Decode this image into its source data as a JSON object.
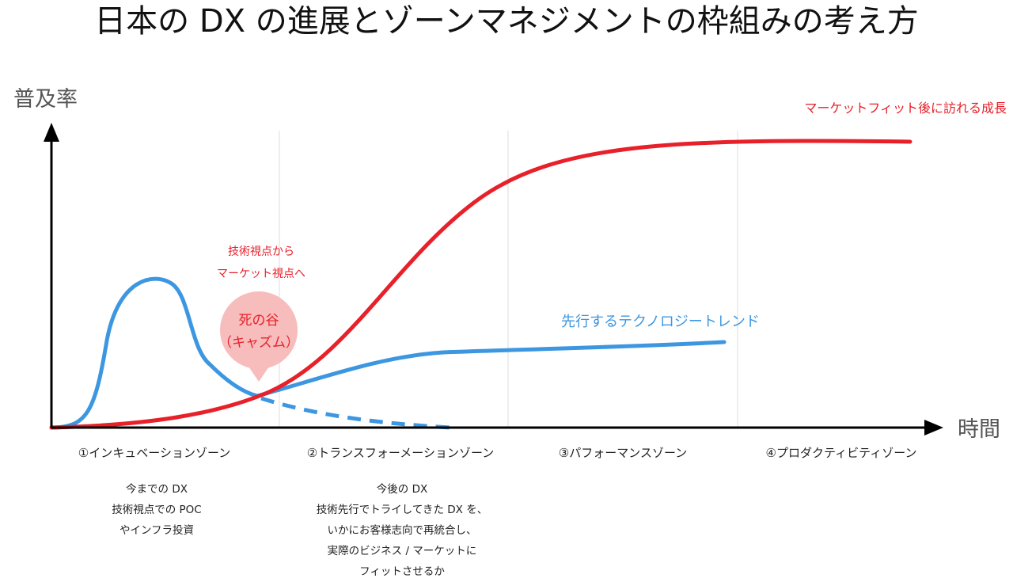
{
  "title": "日本の DX の進展とゾーンマネジメントの枠組みの考え方",
  "axes": {
    "y_label": "普及率",
    "x_label": "時間"
  },
  "zones": [
    {
      "label": "①インキュベーションゾーン"
    },
    {
      "label": "②トランスフォーメーションゾーン"
    },
    {
      "label": "③パフォーマンスゾーン"
    },
    {
      "label": "④プロダクティビティゾーン"
    }
  ],
  "descriptions": {
    "zone1": [
      "今までの DX",
      "技術視点での POC",
      "やインフラ投資"
    ],
    "zone2": [
      "今後の DX",
      "技術先行でトライしてきた DX を、",
      "いかにお客様志向で再統合し、",
      "実際のビジネス / マーケットに",
      "フィットさせるか"
    ]
  },
  "annotations": {
    "red_curve_label": "マーケットフィット後に訪れる成長",
    "blue_curve_label": "先行するテクノロジートレンド",
    "shift_note": [
      "技術視点から",
      "マーケット視点へ"
    ],
    "chasm": [
      "死の谷",
      "（キャズム）"
    ]
  },
  "colors": {
    "red": "#e8202a",
    "blue": "#3d97e0",
    "chasm_bubble": "#f7bcbc",
    "grid": "#dddddd"
  }
}
